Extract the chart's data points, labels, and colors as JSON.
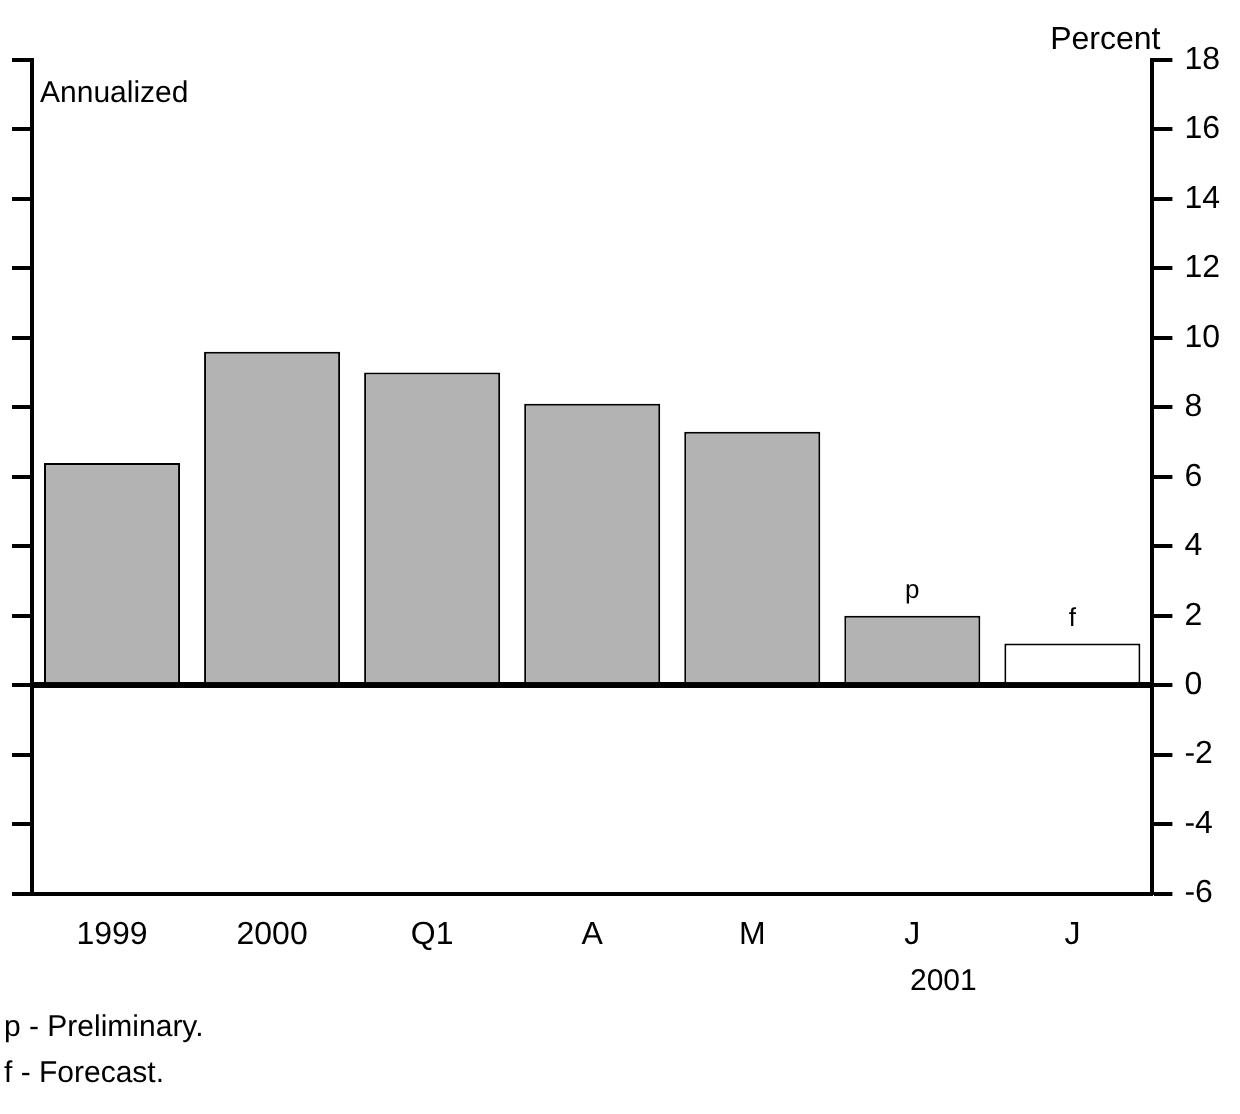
{
  "chart_data": {
    "type": "bar",
    "ylabel": "Percent",
    "categories": [
      "1999",
      "2000",
      "Q1",
      "A",
      "M",
      "J",
      "J"
    ],
    "values": [
      6.4,
      9.6,
      9.0,
      8.1,
      7.3,
      2.0,
      1.2
    ],
    "value_labels": [
      null,
      null,
      null,
      null,
      null,
      "p",
      "f"
    ],
    "colors": [
      "#b3b3b3",
      "#b3b3b3",
      "#b3b3b3",
      "#b3b3b3",
      "#b3b3b3",
      "#b3b3b3",
      "#ffffff"
    ],
    "ylim": [
      -6,
      18
    ],
    "yticks": [
      -6,
      -4,
      -2,
      0,
      2,
      4,
      6,
      8,
      10,
      12,
      14,
      16,
      18
    ],
    "grid": false,
    "legend": false,
    "annotations": [
      "Annualized",
      "2001",
      "p - Preliminary.",
      "f - Forecast."
    ]
  }
}
